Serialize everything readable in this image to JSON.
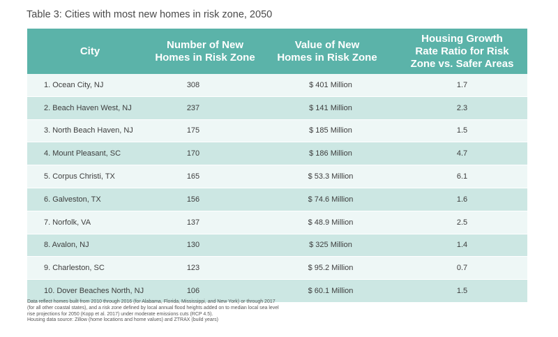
{
  "title": "Table 3: Cities with most new homes in risk zone, 2050",
  "chart_data": {
    "type": "table",
    "columns": [
      "City",
      "Number of New Homes in Risk Zone",
      "Value of New Homes in Risk Zone",
      "Housing Growth Rate Ratio for Risk Zone vs. Safer Areas"
    ],
    "header_lines": [
      [
        "City"
      ],
      [
        "Number of New",
        "Homes in Risk Zone"
      ],
      [
        "Value of New",
        "Homes in Risk Zone"
      ],
      [
        "Housing Growth",
        "Rate Ratio for Risk",
        "Zone vs. Safer Areas"
      ]
    ],
    "rows": [
      [
        "1. Ocean City, NJ",
        "308",
        "$ 401 Million",
        "1.7"
      ],
      [
        "2. Beach Haven West, NJ",
        "237",
        "$ 141 Million",
        "2.3"
      ],
      [
        "3. North Beach Haven, NJ",
        "175",
        "$ 185 Million",
        "1.5"
      ],
      [
        "4. Mount Pleasant, SC",
        "170",
        "$ 186 Million",
        "4.7"
      ],
      [
        "5. Corpus Christi, TX",
        "165",
        "$ 53.3 Million",
        "6.1"
      ],
      [
        "6. Galveston, TX",
        "156",
        "$ 74.6 Million",
        "1.6"
      ],
      [
        "7. Norfolk, VA",
        "137",
        "$ 48.9 Million",
        "2.5"
      ],
      [
        "8. Avalon, NJ",
        "130",
        "$ 325 Million",
        "1.4"
      ],
      [
        "9. Charleston, SC",
        "123",
        "$ 95.2 Million",
        "0.7"
      ],
      [
        "10. Dover Beaches North, NJ",
        "106",
        "$ 60.1 Million",
        "1.5"
      ]
    ]
  },
  "notes": [
    "Data reflect homes built from 2010 through 2016 (for Alabama, Florida, Mississippi, and New York) or through 2017",
    "(for all other coastal states), and a risk zone defined by local annual flood heights added on to median local sea level",
    "rise projections for 2050 (Kopp et al. 2017) under moderate emissions cuts (RCP 4.5).",
    "Housing data source: Zillow (home locations and home values) and ZTRAX (build years)"
  ],
  "colors": {
    "header_bg": "#5bb3a9",
    "row_light": "#eef7f6",
    "row_dark": "#cce7e3"
  }
}
